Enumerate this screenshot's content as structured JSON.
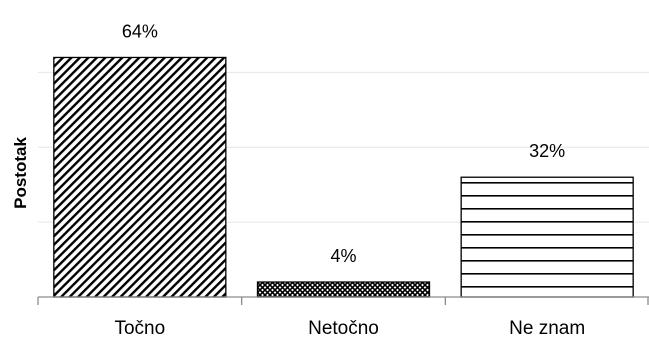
{
  "chart_data": {
    "type": "bar",
    "categories": [
      "Točno",
      "Netočno",
      "Ne znam"
    ],
    "values": [
      64,
      4,
      32
    ],
    "value_labels": [
      "64%",
      "4%",
      "32%"
    ],
    "xlabel": "",
    "ylabel": "Postotak",
    "ylim": [
      0,
      70
    ],
    "grid": true,
    "bar_patterns": [
      "diagonal-stripes",
      "crosshatch",
      "horizontal-stripes"
    ],
    "colors": {
      "bar_outline": "#000000",
      "axis": "#8c8c8c",
      "grid": "#e6e6e6",
      "pattern": "#000000"
    }
  }
}
